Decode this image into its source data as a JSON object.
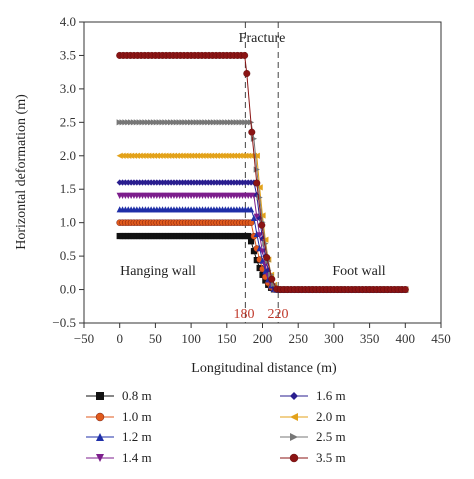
{
  "chart_data": {
    "type": "line",
    "xlabel": "Longitudinal distance (m)",
    "ylabel": "Horizontal deformation (m)",
    "xlim": [
      -50,
      450
    ],
    "ylim": [
      -0.5,
      4.0
    ],
    "xticks": [
      -50,
      0,
      50,
      100,
      150,
      200,
      250,
      300,
      350,
      400,
      450
    ],
    "yticks": [
      -0.5,
      0.0,
      0.5,
      1.0,
      1.5,
      2.0,
      2.5,
      3.0,
      3.5,
      4.0
    ],
    "ytick_labels": [
      "−0.5",
      "0.0",
      "0.5",
      "1.0",
      "1.5",
      "2.0",
      "2.5",
      "3.0",
      "3.5",
      "4.0"
    ],
    "xtick_labels": [
      "−50",
      "0",
      "50",
      "100",
      "150",
      "200",
      "250",
      "300",
      "350",
      "400",
      "450"
    ],
    "grid": false,
    "legend": "bottom",
    "vlines": [
      {
        "x": 176,
        "style": "dashed"
      },
      {
        "x": 222,
        "style": "dashed"
      }
    ],
    "annotations": [
      {
        "id": "fracture",
        "text": "Fracture"
      },
      {
        "id": "hanging",
        "text": "Hanging wall"
      },
      {
        "id": "foot",
        "text": "Foot wall"
      },
      {
        "id": "x180",
        "text": "180"
      },
      {
        "id": "x220",
        "text": "220"
      }
    ],
    "series": [
      {
        "name": "0.8 m",
        "plateau": 0.8,
        "drop_start": 182,
        "drop_end": 218,
        "color": "#111111",
        "marker": "square"
      },
      {
        "name": "1.0 m",
        "plateau": 1.0,
        "drop_start": 184,
        "drop_end": 218,
        "color": "#e05a1c",
        "marker": "circle"
      },
      {
        "name": "1.2 m",
        "plateau": 1.2,
        "drop_start": 186,
        "drop_end": 219,
        "color": "#1f2fa8",
        "marker": "triangle-up"
      },
      {
        "name": "1.4 m",
        "plateau": 1.4,
        "drop_start": 188,
        "drop_end": 219,
        "color": "#7d1e8c",
        "marker": "triangle-down"
      },
      {
        "name": "1.6 m",
        "plateau": 1.6,
        "drop_start": 190,
        "drop_end": 220,
        "color": "#2a1e8f",
        "marker": "diamond"
      },
      {
        "name": "2.0 m",
        "plateau": 2.0,
        "drop_start": 192,
        "drop_end": 221,
        "color": "#e3a21a",
        "marker": "triangle-left"
      },
      {
        "name": "2.5 m",
        "plateau": 2.5,
        "drop_start": 186,
        "drop_end": 222,
        "color": "#777777",
        "marker": "triangle-right"
      },
      {
        "name": "3.5 m",
        "plateau": 3.5,
        "drop_start": 176,
        "drop_end": 222,
        "color": "#8b1414",
        "marker": "circle"
      }
    ]
  }
}
